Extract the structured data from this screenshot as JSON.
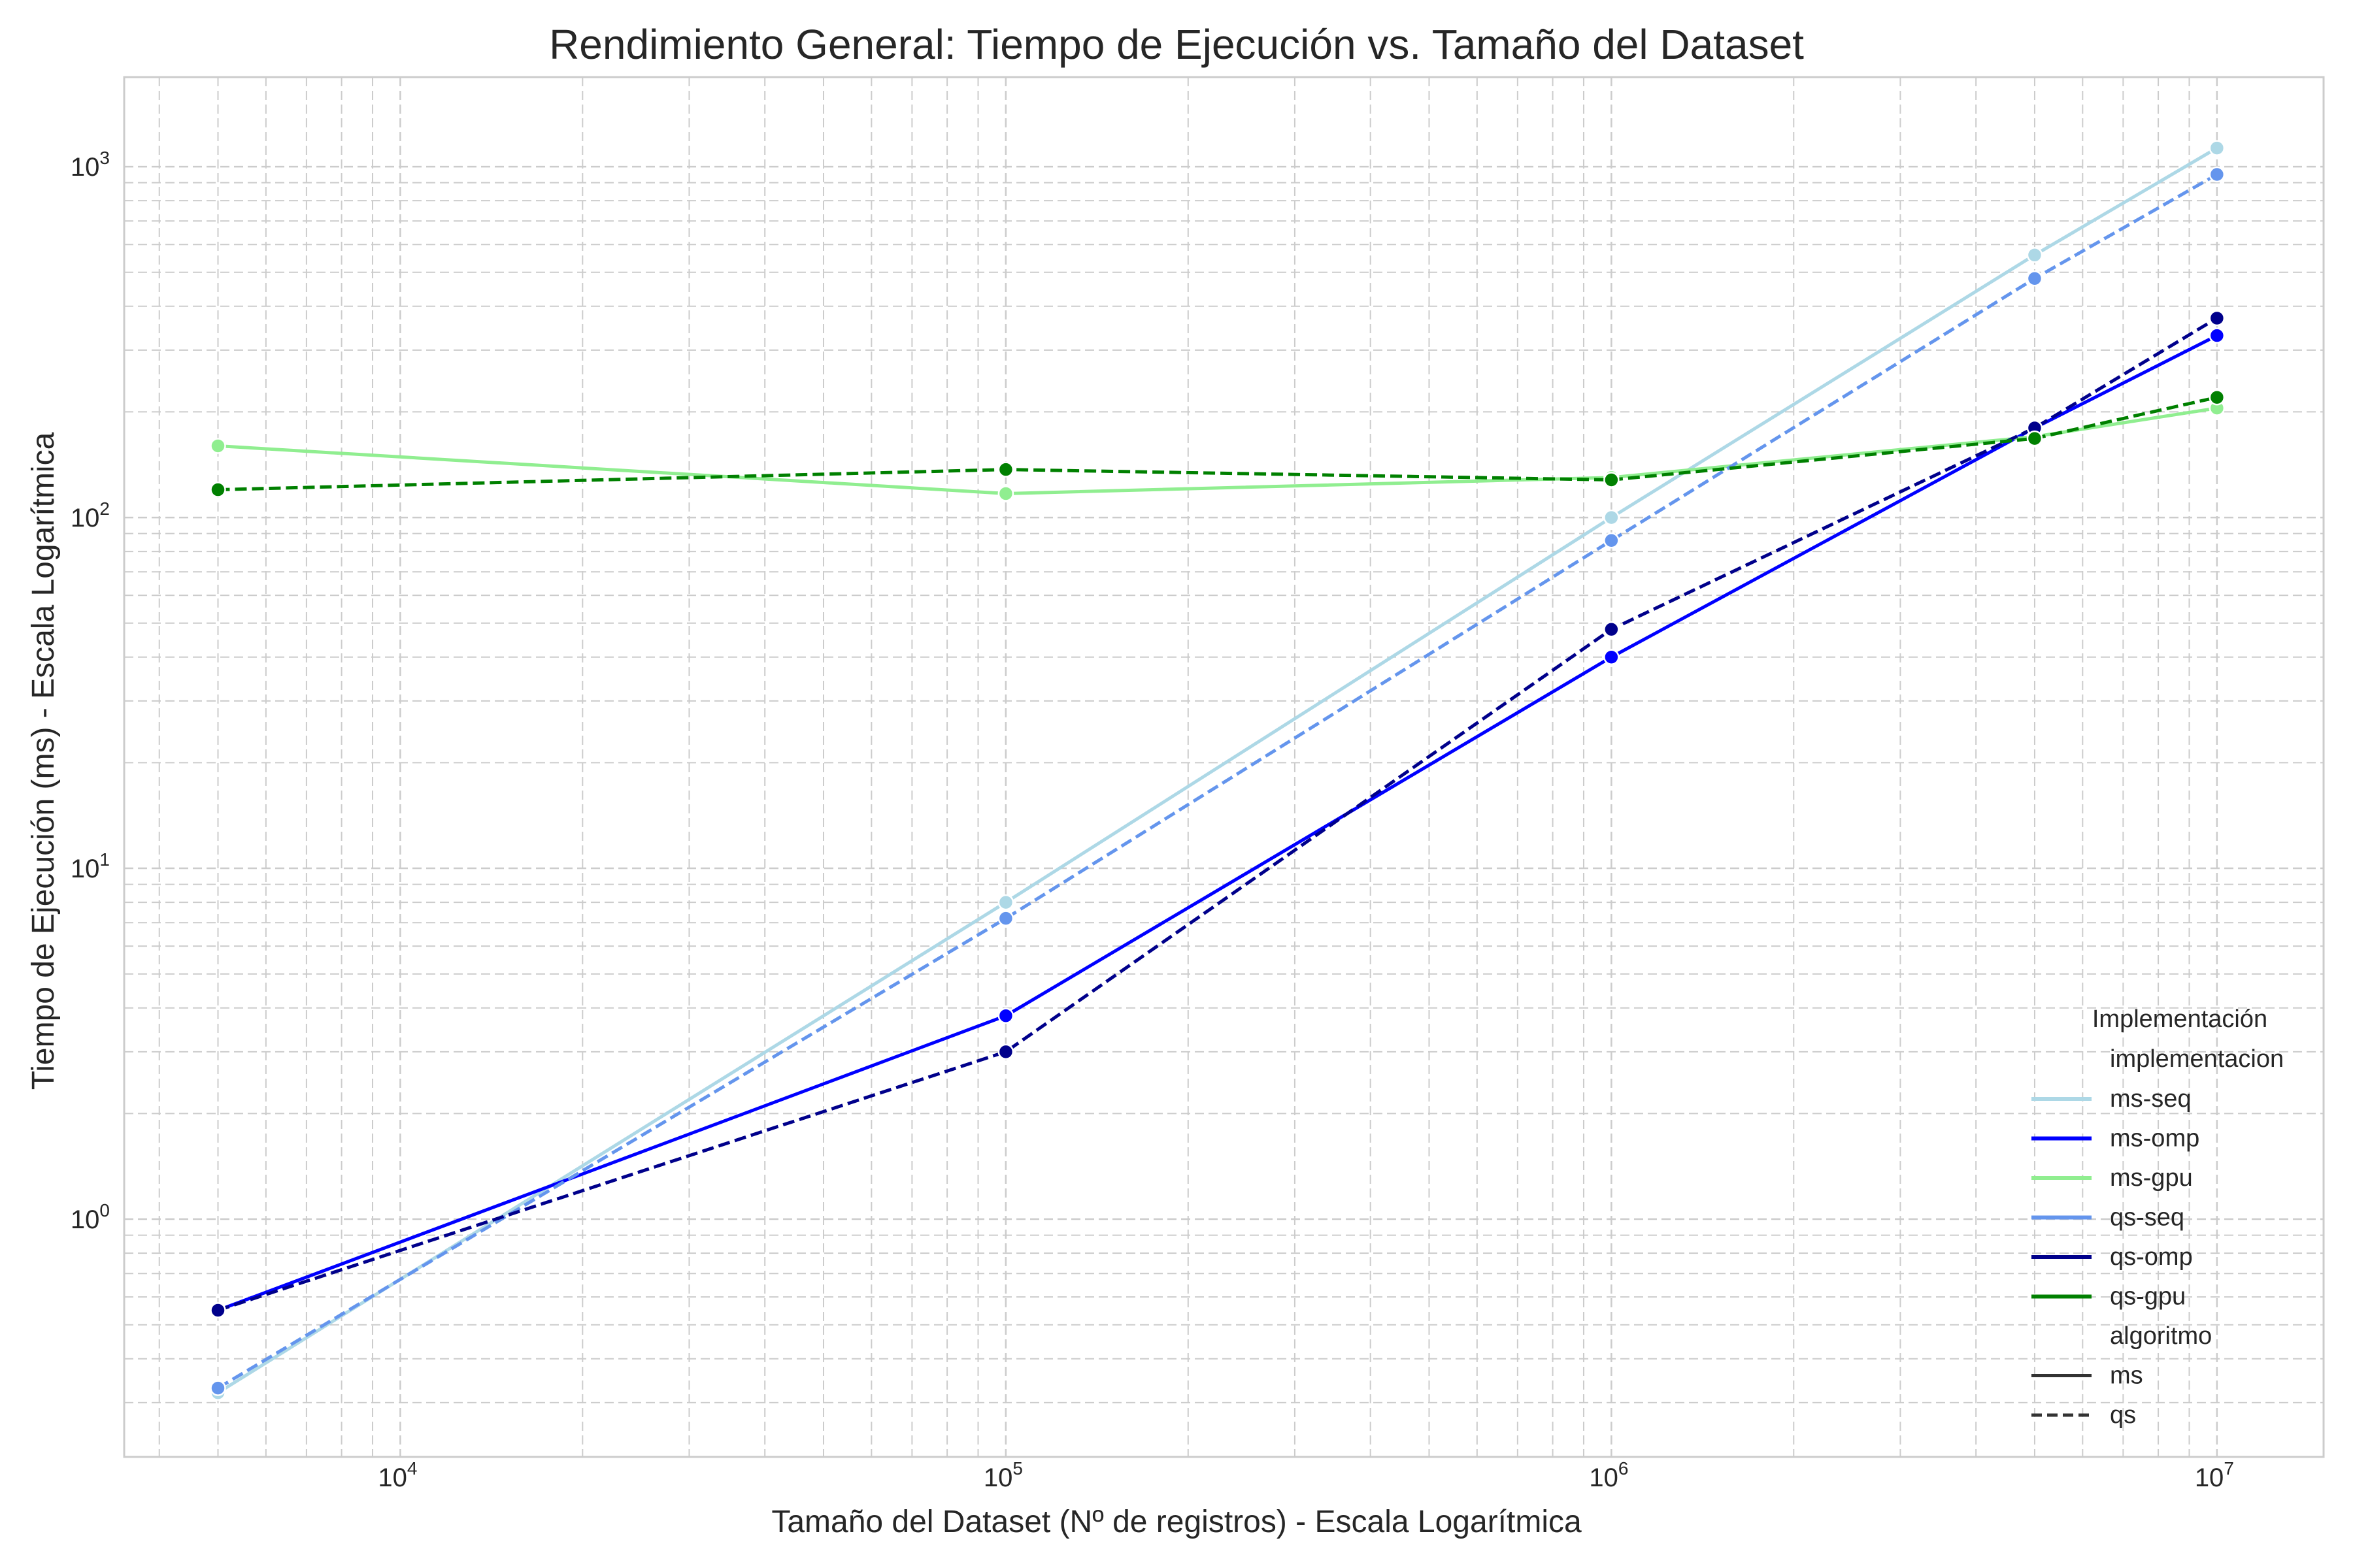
{
  "chart_data": {
    "type": "line",
    "title": "Rendimiento General: Tiempo de Ejecución vs. Tamaño del Dataset",
    "xlabel": "Tamaño del Dataset (Nº de registros) - Escala Logarítmica",
    "ylabel": "Tiempo de Ejecución (ms) - Escala Logarítmica",
    "xscale": "log",
    "yscale": "log",
    "xlim": [
      3500,
      15000000
    ],
    "ylim": [
      0.21,
      1800
    ],
    "x_ticks": [
      {
        "value": 10000,
        "base": "10",
        "exp": "4"
      },
      {
        "value": 100000,
        "base": "10",
        "exp": "5"
      },
      {
        "value": 1000000,
        "base": "10",
        "exp": "6"
      },
      {
        "value": 10000000,
        "base": "10",
        "exp": "7"
      }
    ],
    "y_ticks": [
      {
        "value": 1,
        "base": "10",
        "exp": "0"
      },
      {
        "value": 10,
        "base": "10",
        "exp": "1"
      },
      {
        "value": 100,
        "base": "10",
        "exp": "2"
      },
      {
        "value": 1000,
        "base": "10",
        "exp": "3"
      }
    ],
    "grid": true,
    "legend_position": "bottom-right",
    "legend": {
      "title": "Implementación",
      "hue_header": "implementacion",
      "style_header": "algoritmo",
      "styles": [
        {
          "name": "ms",
          "dash": "solid"
        },
        {
          "name": "qs",
          "dash": "dashed"
        }
      ]
    },
    "series": [
      {
        "name": "ms-seq",
        "color": "#add8e6",
        "dash": "solid",
        "x": [
          5000,
          100000,
          1000000,
          5000000,
          10000000
        ],
        "y": [
          0.32,
          8.0,
          100,
          560,
          1130
        ]
      },
      {
        "name": "ms-omp",
        "color": "#0000ff",
        "dash": "solid",
        "x": [
          5000,
          100000,
          1000000,
          5000000,
          10000000
        ],
        "y": [
          0.55,
          3.8,
          40,
          180,
          330
        ]
      },
      {
        "name": "ms-gpu",
        "color": "#90ee90",
        "dash": "solid",
        "x": [
          5000,
          100000,
          1000000,
          5000000,
          10000000
        ],
        "y": [
          160,
          117,
          130,
          170,
          205
        ]
      },
      {
        "name": "qs-seq",
        "color": "#6495ed",
        "dash": "dashed",
        "x": [
          5000,
          100000,
          1000000,
          5000000,
          10000000
        ],
        "y": [
          0.33,
          7.2,
          86,
          480,
          950
        ]
      },
      {
        "name": "qs-omp",
        "color": "#00008b",
        "dash": "dashed",
        "x": [
          5000,
          100000,
          1000000,
          5000000,
          10000000
        ],
        "y": [
          0.55,
          3.0,
          48,
          180,
          370
        ]
      },
      {
        "name": "qs-gpu",
        "color": "#008000",
        "dash": "dashed",
        "x": [
          5000,
          100000,
          1000000,
          5000000,
          10000000
        ],
        "y": [
          120,
          137,
          128,
          168,
          220
        ]
      }
    ]
  }
}
